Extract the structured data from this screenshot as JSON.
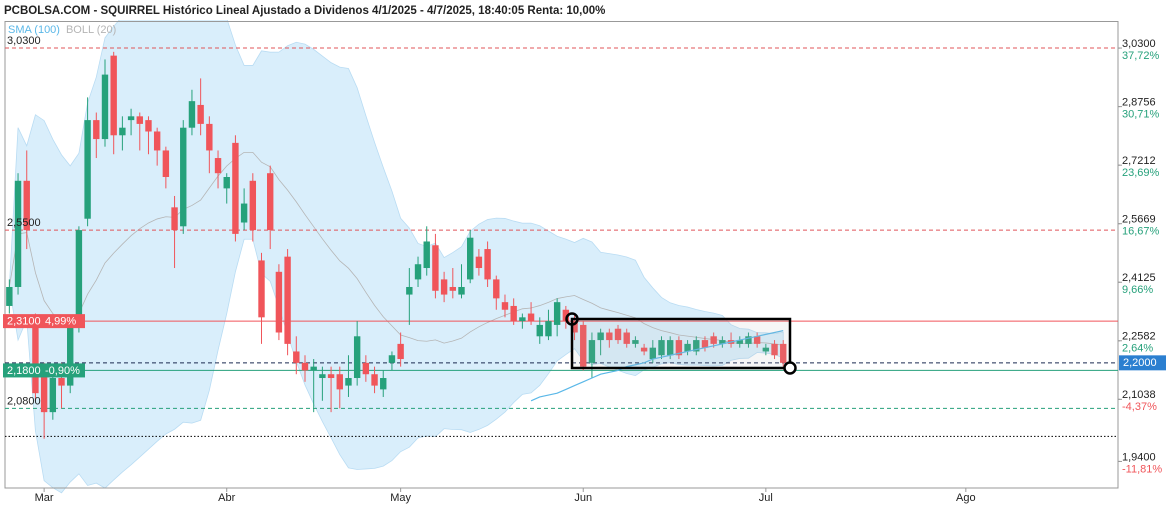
{
  "chart_data": {
    "type": "candlestick",
    "title": "PCBOLSA.COM - SQUIRREL Histórico Lineal Ajustado a Dividenos 4/1/2025 - 4/7/2025, 18:40:05 Renta: 10,00%",
    "categories": [
      null,
      null,
      null,
      null,
      "Mar",
      null,
      null,
      null,
      null,
      null,
      null,
      null,
      null,
      null,
      null,
      null,
      null,
      null,
      null,
      null,
      null,
      null,
      null,
      null,
      null,
      "Abr",
      null,
      null,
      null,
      null,
      null,
      null,
      null,
      null,
      null,
      null,
      null,
      null,
      null,
      null,
      null,
      null,
      null,
      null,
      null,
      "May",
      null,
      null,
      null,
      null,
      null,
      null,
      null,
      null,
      null,
      null,
      null,
      null,
      null,
      null,
      null,
      null,
      null,
      null,
      null,
      null,
      "Jun",
      null,
      null,
      null,
      null,
      null,
      null,
      null,
      null,
      null,
      null,
      null,
      null,
      null,
      null,
      null,
      null,
      null,
      null,
      null,
      null,
      "Jul",
      null,
      null,
      null,
      null,
      null,
      null,
      null,
      null,
      null,
      null,
      null,
      null,
      null,
      null,
      null,
      null,
      null,
      null,
      null,
      null,
      null,
      null,
      "Ago",
      null,
      null,
      null,
      null,
      null,
      null,
      null,
      null,
      null,
      null,
      null,
      null,
      null,
      null,
      null,
      null,
      null
    ],
    "open": [
      2.35,
      2.4,
      2.68,
      2.31,
      2.18,
      2.07,
      2.16,
      2.14,
      2.3,
      2.58,
      2.84,
      2.79,
      3.01,
      2.8,
      2.84,
      2.85,
      2.84,
      2.81,
      2.76,
      2.61,
      2.56,
      2.82,
      2.88,
      2.83,
      2.74,
      2.66,
      2.78,
      2.57,
      2.68,
      2.47,
      2.7,
      2.44,
      2.48,
      2.23,
      2.2,
      2.18,
      2.16,
      2.17,
      2.17,
      2.14,
      2.16,
      2.2,
      2.17,
      2.13,
      2.2,
      2.25,
      2.38,
      2.42,
      2.45,
      2.51,
      2.42,
      2.4,
      2.38,
      2.42,
      2.48,
      2.5,
      2.42,
      2.36,
      2.35,
      2.31,
      2.33,
      2.27,
      2.27,
      2.3,
      2.34,
      2.31,
      2.3,
      2.2,
      2.26,
      2.28,
      2.29,
      2.28,
      2.25,
      2.24,
      2.21,
      2.22,
      2.22,
      2.26,
      2.23,
      2.23,
      2.26,
      2.27,
      2.25,
      2.26,
      2.25,
      2.25,
      2.27,
      2.23,
      2.25,
      2.25,
      null,
      null,
      null,
      null,
      null,
      null,
      null,
      null,
      null,
      null,
      null,
      null,
      null,
      null,
      null,
      null,
      null,
      null,
      null,
      null,
      null,
      null,
      null,
      null,
      null,
      null,
      null,
      null,
      null,
      null,
      null,
      null,
      null,
      null,
      null,
      null,
      null,
      null
    ],
    "high": [
      2.42,
      2.7,
      2.76,
      2.33,
      2.2,
      2.18,
      2.2,
      2.32,
      2.56,
      2.9,
      2.86,
      3.0,
      3.02,
      2.85,
      2.87,
      2.86,
      2.85,
      2.82,
      2.77,
      2.64,
      2.84,
      2.92,
      2.95,
      2.85,
      2.76,
      2.7,
      2.8,
      2.66,
      2.7,
      2.49,
      2.72,
      2.46,
      2.5,
      2.27,
      2.22,
      2.21,
      2.19,
      2.19,
      2.19,
      2.22,
      2.31,
      2.22,
      2.19,
      2.18,
      2.23,
      2.28,
      2.45,
      2.48,
      2.56,
      2.54,
      2.44,
      2.45,
      2.46,
      2.55,
      2.5,
      2.52,
      2.43,
      2.38,
      2.37,
      2.33,
      2.36,
      2.32,
      2.34,
      2.37,
      2.35,
      2.33,
      2.31,
      2.28,
      2.29,
      2.29,
      2.3,
      2.29,
      2.27,
      2.25,
      2.26,
      2.27,
      2.27,
      2.27,
      2.26,
      2.27,
      2.27,
      2.28,
      2.27,
      2.28,
      2.27,
      2.28,
      2.28,
      2.25,
      2.26,
      2.26,
      null,
      null,
      null,
      null,
      null,
      null,
      null,
      null,
      null,
      null,
      null,
      null,
      null,
      null,
      null,
      null,
      null,
      null,
      null,
      null,
      null,
      null,
      null,
      null,
      null,
      null,
      null,
      null,
      null,
      null,
      null,
      null,
      null,
      null,
      null,
      null,
      null,
      null
    ],
    "low": [
      2.33,
      2.38,
      2.5,
      2.1,
      2.0,
      2.05,
      2.08,
      2.12,
      2.28,
      2.56,
      2.74,
      2.77,
      2.75,
      2.76,
      2.8,
      2.76,
      2.75,
      2.72,
      2.66,
      2.45,
      2.54,
      2.8,
      2.8,
      2.7,
      2.66,
      2.62,
      2.52,
      2.55,
      2.52,
      2.25,
      2.5,
      2.26,
      2.22,
      2.17,
      2.15,
      2.07,
      2.1,
      2.07,
      2.08,
      2.11,
      2.14,
      2.15,
      2.12,
      2.11,
      2.18,
      2.19,
      2.3,
      2.4,
      2.43,
      2.37,
      2.36,
      2.37,
      2.37,
      2.41,
      2.43,
      2.4,
      2.34,
      2.32,
      2.3,
      2.29,
      2.3,
      2.25,
      2.26,
      2.27,
      2.29,
      2.26,
      2.18,
      2.16,
      2.22,
      2.24,
      2.25,
      2.24,
      2.24,
      2.22,
      2.2,
      2.21,
      2.21,
      2.21,
      2.22,
      2.22,
      2.23,
      2.24,
      2.24,
      2.24,
      2.24,
      2.24,
      2.24,
      2.22,
      2.21,
      2.19,
      null,
      null,
      null,
      null,
      null,
      null,
      null,
      null,
      null,
      null,
      null,
      null,
      null,
      null,
      null,
      null,
      null,
      null,
      null,
      null,
      null,
      null,
      null,
      null,
      null,
      null,
      null,
      null,
      null,
      null,
      null,
      null,
      null,
      null,
      null,
      null,
      null,
      null
    ],
    "close": [
      2.4,
      2.68,
      2.55,
      2.12,
      2.07,
      2.16,
      2.14,
      2.3,
      2.55,
      2.84,
      2.79,
      2.96,
      2.8,
      2.82,
      2.85,
      2.83,
      2.81,
      2.76,
      2.69,
      2.55,
      2.82,
      2.89,
      2.83,
      2.76,
      2.7,
      2.69,
      2.54,
      2.62,
      2.55,
      2.32,
      2.55,
      2.28,
      2.25,
      2.2,
      2.18,
      2.19,
      2.17,
      2.16,
      2.13,
      2.16,
      2.27,
      2.17,
      2.14,
      2.16,
      2.22,
      2.21,
      2.4,
      2.46,
      2.52,
      2.39,
      2.38,
      2.39,
      2.4,
      2.53,
      2.45,
      2.42,
      2.37,
      2.34,
      2.31,
      2.32,
      2.31,
      2.3,
      2.31,
      2.36,
      2.31,
      2.28,
      2.19,
      2.26,
      2.28,
      2.26,
      2.26,
      2.25,
      2.26,
      2.23,
      2.24,
      2.26,
      2.26,
      2.22,
      2.25,
      2.26,
      2.24,
      2.25,
      2.26,
      2.25,
      2.26,
      2.27,
      2.25,
      2.24,
      2.22,
      2.2,
      null,
      null,
      null,
      null,
      null,
      null,
      null,
      null,
      null,
      null,
      null,
      null,
      null,
      null,
      null,
      null,
      null,
      null,
      null,
      null,
      null,
      null,
      null,
      null,
      null,
      null,
      null,
      null,
      null,
      null,
      null,
      null,
      null,
      null,
      null,
      null,
      null,
      null
    ],
    "up_color": "#26a17b",
    "down_color": "#f0555a",
    "indicators": [
      {
        "name": "SMA (100)",
        "color": "#5bb8e8",
        "values": [
          null,
          null,
          null,
          null,
          null,
          null,
          null,
          null,
          null,
          null,
          null,
          null,
          null,
          null,
          null,
          null,
          null,
          null,
          null,
          null,
          null,
          null,
          null,
          null,
          null,
          null,
          null,
          null,
          null,
          null,
          null,
          null,
          null,
          null,
          null,
          null,
          null,
          null,
          null,
          null,
          null,
          null,
          null,
          null,
          null,
          null,
          null,
          null,
          null,
          null,
          null,
          null,
          null,
          null,
          null,
          null,
          null,
          null,
          null,
          null,
          2.1,
          2.11,
          2.115,
          2.12,
          2.13,
          2.14,
          2.15,
          2.16,
          2.17,
          2.175,
          2.18,
          2.19,
          2.195,
          2.2,
          2.21,
          2.215,
          2.22,
          2.225,
          2.23,
          2.235,
          2.24,
          2.245,
          2.25,
          2.255,
          2.26,
          2.265,
          2.27,
          2.275,
          2.28,
          2.285,
          null,
          null,
          null,
          null,
          null,
          null,
          null,
          null,
          null,
          null,
          null,
          null,
          null,
          null,
          null,
          null,
          null,
          null,
          null,
          null,
          null,
          null,
          null,
          null,
          null,
          null,
          null,
          null,
          null,
          null,
          null,
          null,
          null,
          null,
          null,
          null,
          null,
          null
        ]
      },
      {
        "name": "BOLL (20)",
        "color": "#b5b5b5",
        "period": 20,
        "fill": "#d9eefb"
      }
    ],
    "ylim": [
      1.87,
      3.1
    ],
    "yticks": [
      {
        "value": 3.03,
        "label": "3,0300"
      },
      {
        "value": 2.8756,
        "label": "2,8756"
      },
      {
        "value": 2.7212,
        "label": "2,7212"
      },
      {
        "value": 2.5669,
        "label": "2,5669"
      },
      {
        "value": 2.4125,
        "label": "2,4125"
      },
      {
        "value": 2.2582,
        "label": "2,2582"
      },
      {
        "value": 2.1038,
        "label": "2,1038"
      },
      {
        "value": 1.94,
        "label": "1,9400"
      }
    ],
    "y2lim": [
      -15.0,
      40.909
    ],
    "y2ticks": [
      {
        "value": 37.72,
        "label": "37,72%"
      },
      {
        "value": 30.71,
        "label": "30,71%"
      },
      {
        "value": 23.69,
        "label": "23,69%"
      },
      {
        "value": 16.67,
        "label": "16,67%"
      },
      {
        "value": 9.66,
        "label": "9,66%"
      },
      {
        "value": 2.64,
        "label": "2,64%"
      },
      {
        "value": -4.37,
        "label": "-4,37%"
      },
      {
        "value": -11.81,
        "label": "-11,81%"
      }
    ],
    "levels": [
      {
        "value": 3.03,
        "label": "3,0300",
        "color": "#e0555a",
        "style": "dashed"
      },
      {
        "value": 2.55,
        "label": "2,5500",
        "color": "#e0555a",
        "style": "dashed"
      },
      {
        "value": 2.31,
        "label": "2,3100",
        "pct_label": "4,99%",
        "color": "#f0555a",
        "style": "solid",
        "boxed": true
      },
      {
        "value": 2.18,
        "label": "2,1800",
        "pct_label": "-0,90%",
        "color": "#26a17b",
        "style": "solid",
        "boxed": true
      },
      {
        "value": 2.08,
        "label": "2,0800",
        "color": "#26a17b",
        "style": "dashed"
      },
      {
        "value": 2.006,
        "color": "#000000",
        "style": "dotted"
      }
    ],
    "last_price": {
      "value": 2.2,
      "label": "2,2000",
      "color": "#2b7fd0"
    }
  }
}
